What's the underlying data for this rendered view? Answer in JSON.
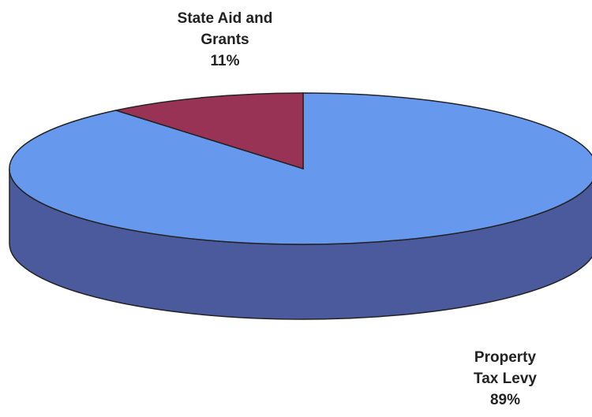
{
  "chart_data": {
    "type": "pie",
    "style": "3d",
    "title": "",
    "slices": [
      {
        "label_lines": [
          "State Aid and",
          "Grants"
        ],
        "percent_label": "11%",
        "value": 11,
        "color": "#993355"
      },
      {
        "label_lines": [
          "Property",
          "Tax Levy"
        ],
        "percent_label": "89%",
        "value": 89,
        "color": "#6699ee"
      }
    ],
    "colors": {
      "property_side": "#4a5a9c",
      "outline": "#222222"
    }
  }
}
